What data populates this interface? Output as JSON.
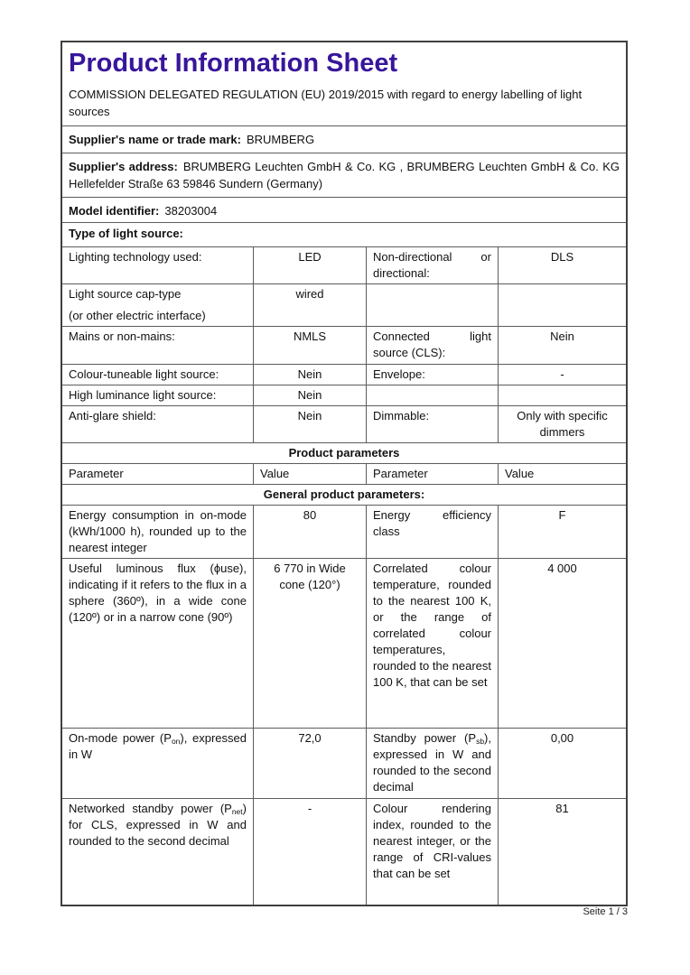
{
  "header": {
    "title": "Product Information Sheet",
    "subtitle": "COMMISSION DELEGATED REGULATION (EU) 2019/2015 with regard to energy labelling of light sources"
  },
  "theme": {
    "title_color": "#38169b",
    "outer_border": "#3f3f3f",
    "inner_border": "#5c5c5c"
  },
  "footer": {
    "text": "Seite 1 / 3"
  },
  "table": {
    "rows": [
      {
        "kind": "lv",
        "name": "supplier-name-row",
        "label": "Supplier's name or trade mark:",
        "value": "BRUMBERG"
      },
      {
        "kind": "lv",
        "name": "supplier-address-row",
        "label": "Supplier's address:",
        "value": "BRUMBERG Leuchten GmbH & Co. KG , BRUMBERG Leuchten GmbH & Co. KG Hellefelder Straße 63 59846 Sundern (Germany)"
      },
      {
        "kind": "lv",
        "name": "model-identifier-row",
        "label": "Model identifier:",
        "value": "38203004"
      },
      {
        "kind": "full",
        "bold": true,
        "center": false,
        "name": "type-of-light-source-row",
        "text": "Type of light source:"
      },
      {
        "kind": "cells",
        "cells": [
          "Lighting technology used:",
          "LED",
          "Non-directional or directional:",
          "DLS"
        ]
      },
      {
        "kind": "cells",
        "cells": [
          {
            "para": [
              "Light source cap-type",
              "(or other electric interface)"
            ]
          },
          "wired",
          "",
          ""
        ]
      },
      {
        "kind": "cells",
        "cells": [
          "Mains or non-mains:",
          "NMLS",
          "Connected light source (CLS):",
          "Nein"
        ]
      },
      {
        "kind": "cells",
        "cells": [
          "Colour-tuneable light source:",
          "Nein",
          "Envelope:",
          "-"
        ]
      },
      {
        "kind": "cells",
        "cells": [
          "High luminance light source:",
          "Nein",
          "",
          ""
        ]
      },
      {
        "kind": "cells",
        "cells": [
          "Anti-glare shield:",
          "Nein",
          "Dimmable:",
          "Only with specific dimmers"
        ]
      },
      {
        "kind": "full",
        "bold": true,
        "center": true,
        "name": "product-parameters-header",
        "text": "Product parameters"
      },
      {
        "kind": "cells",
        "header": true,
        "cells": [
          "Parameter",
          "Value",
          "Parameter",
          "Value"
        ]
      },
      {
        "kind": "full",
        "bold": true,
        "center": true,
        "name": "general-product-parameters-header",
        "text": "General product parameters:"
      },
      {
        "kind": "cells",
        "cells": [
          "Energy consumption in on-mode (kWh/1000 h), rounded up to the nearest integer",
          "80",
          "Energy efficiency class",
          "F"
        ]
      },
      {
        "kind": "cells",
        "cells": [
          "Useful luminous flux (ϕuse), indicating if it refers to the flux in a sphere (360º), in a wide cone (120º) or in a narrow cone (90º)",
          "6 770 in Wide cone (120°)",
          "Correlated colour temperature, rounded to the nearest 100 K, or the range of correlated colour temperatures, rounded to the nearest 100 K, that can be set",
          "4 000"
        ]
      },
      {
        "kind": "cells",
        "cells": [
          {
            "seg": [
              {
                "t": "On-mode power (P"
              },
              {
                "t": "on",
                "sub": true
              },
              {
                "t": "), expressed in W"
              }
            ]
          },
          "72,0",
          {
            "seg": [
              {
                "t": "Standby power (P"
              },
              {
                "t": "sb",
                "sub": true
              },
              {
                "t": "), expressed in W and rounded to the second decimal"
              }
            ]
          },
          "0,00"
        ]
      },
      {
        "kind": "cells",
        "cells": [
          {
            "seg": [
              {
                "t": "Networked standby power (P"
              },
              {
                "t": "net",
                "sub": true
              },
              {
                "t": ") for CLS, expressed in W and rounded to the second decimal"
              }
            ]
          },
          "-",
          "Colour rendering index, rounded to the nearest integer, or the range of CRI-values that can be set",
          "81"
        ]
      }
    ]
  }
}
